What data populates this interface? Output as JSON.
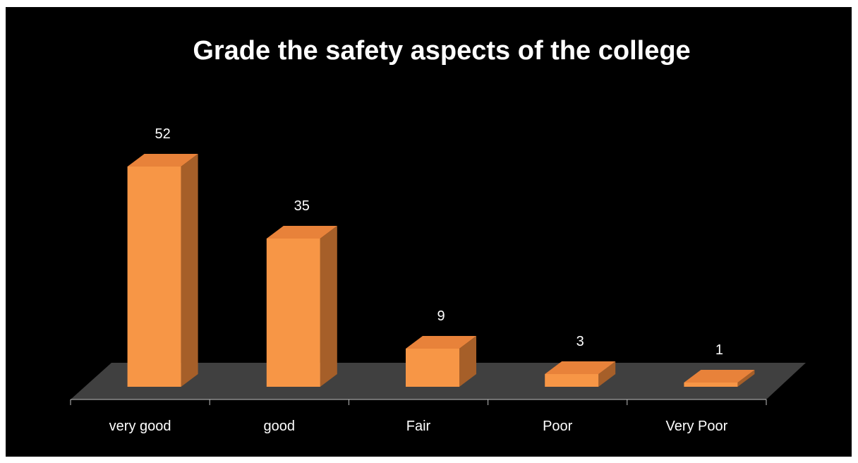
{
  "chart_data": {
    "type": "bar",
    "title": "Grade the safety aspects of the college",
    "categories": [
      "very good",
      "good",
      "Fair",
      "Poor",
      "Very Poor"
    ],
    "values": [
      52,
      35,
      9,
      3,
      1
    ],
    "data_labels": [
      "52",
      "35",
      "9",
      "3",
      "1"
    ],
    "xlabel": "",
    "ylabel": "",
    "ylim": [
      0,
      60
    ],
    "grid": false,
    "legend": "none",
    "style": "3d-column",
    "colors": {
      "background": "#000000",
      "bar_front": "#F79646",
      "bar_top": "#E8823A",
      "bar_side": "#A65F29",
      "floor": "#404040",
      "text": "#FFFFFF",
      "axis": "#BFBFBF"
    }
  }
}
